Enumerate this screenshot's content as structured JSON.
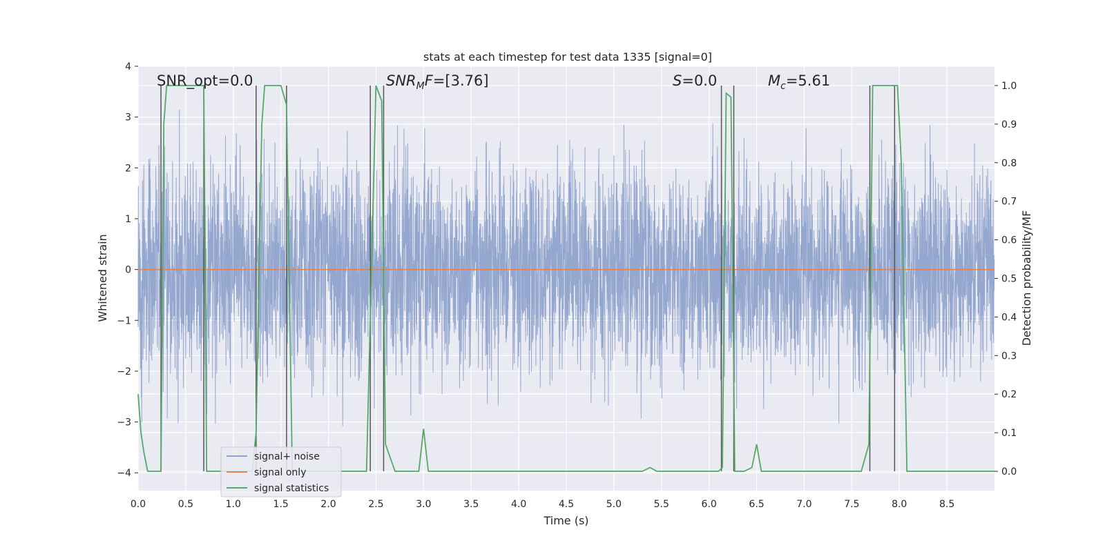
{
  "chart_data": {
    "type": "line",
    "title": "stats at each timestep for test data 1335 [signal=0]",
    "xlabel": "Time (s)",
    "ylabel": "Whitened strain",
    "ylabel_right": "Detection probability/MF",
    "xlim": [
      0,
      9.0
    ],
    "ylim": [
      -4.35,
      4.0
    ],
    "ylim_right": [
      -0.05,
      1.05
    ],
    "x_ticks": [
      0.0,
      0.5,
      1.0,
      1.5,
      2.0,
      2.5,
      3.0,
      3.5,
      4.0,
      4.5,
      5.0,
      5.5,
      6.0,
      6.5,
      7.0,
      7.5,
      8.0,
      8.5
    ],
    "x_tick_labels": [
      "0.0",
      "0.5",
      "1.0",
      "1.5",
      "2.0",
      "2.5",
      "3.0",
      "3.5",
      "4.0",
      "4.5",
      "5.0",
      "5.5",
      "6.0",
      "6.5",
      "7.0",
      "7.5",
      "8.0",
      "8.5"
    ],
    "y_ticks": [
      4,
      3,
      2,
      1,
      0,
      -1,
      -2,
      -3,
      -4
    ],
    "y_tick_labels": [
      "4",
      "3",
      "2",
      "1",
      "0",
      "−1",
      "−2",
      "−3",
      "−4"
    ],
    "y_ticks_right": [
      1.0,
      0.9,
      0.8,
      0.7,
      0.6,
      0.5,
      0.4,
      0.3,
      0.2,
      0.1,
      0.0
    ],
    "y_tick_labels_right": [
      "1.0",
      "0.9",
      "0.8",
      "0.7",
      "0.6",
      "0.5",
      "0.4",
      "0.3",
      "0.2",
      "0.1",
      "0.0"
    ],
    "annotations": {
      "snr_opt": "SNR_opt=0.0",
      "snr_mf_base": "SNR",
      "snr_mf_sub": "M",
      "snr_mf_mid": "F",
      "snr_mf_value": "=[3.76]",
      "s_base": "S",
      "s_value": "=0.0",
      "mc_base": "M",
      "mc_sub": "c",
      "mc_value": "=5.61"
    },
    "legend": {
      "position": "lower-left",
      "entries": [
        "signal+ noise",
        "signal only",
        "signal statistics"
      ]
    },
    "colors": {
      "noise": "#8fa3cc",
      "signal_only": "#dd8452",
      "statistics": "#55a868",
      "markers": "#555555",
      "plot_bg": "#eaeaf2",
      "grid": "#ffffff"
    },
    "noise_series": {
      "name": "signal+ noise",
      "duration_s": 9.0,
      "samples": 4500,
      "std": 1.0,
      "range": [
        -3.95,
        3.6
      ]
    },
    "signal_only_series": {
      "name": "signal only",
      "value": 0.0
    },
    "statistics_series": {
      "name": "signal statistics",
      "x": [
        0.0,
        0.03,
        0.06,
        0.1,
        0.24,
        0.27,
        0.3,
        0.48,
        0.69,
        0.72,
        0.75,
        0.9,
        1.2,
        1.24,
        1.3,
        1.33,
        1.5,
        1.56,
        1.62,
        1.8,
        2.4,
        2.45,
        2.5,
        2.56,
        2.6,
        2.7,
        2.95,
        3.0,
        3.05,
        3.5,
        5.3,
        5.38,
        5.45,
        6.1,
        6.14,
        6.18,
        6.23,
        6.27,
        6.3,
        6.37,
        6.45,
        6.5,
        6.55,
        6.6,
        7.6,
        7.68,
        7.72,
        7.78,
        7.98,
        8.02,
        8.08,
        9.0
      ],
      "values": [
        0.2,
        0.1,
        0.05,
        0.0,
        0.0,
        0.9,
        1.0,
        1.0,
        1.0,
        0.0,
        0.0,
        0.0,
        0.0,
        0.1,
        0.9,
        1.0,
        1.0,
        0.95,
        0.0,
        0.0,
        0.0,
        0.5,
        1.0,
        0.96,
        0.07,
        0.0,
        0.0,
        0.11,
        0.0,
        0.0,
        0.0,
        0.01,
        0.0,
        0.0,
        0.01,
        0.98,
        0.97,
        0.0,
        0.0,
        0.0,
        0.01,
        0.07,
        0.0,
        0.0,
        0.0,
        0.07,
        1.0,
        1.0,
        1.0,
        0.8,
        0.0,
        0.0
      ]
    },
    "marker_lines_x": [
      0.24,
      0.69,
      1.24,
      1.56,
      2.44,
      2.58,
      6.13,
      6.26,
      7.69,
      7.95
    ]
  }
}
